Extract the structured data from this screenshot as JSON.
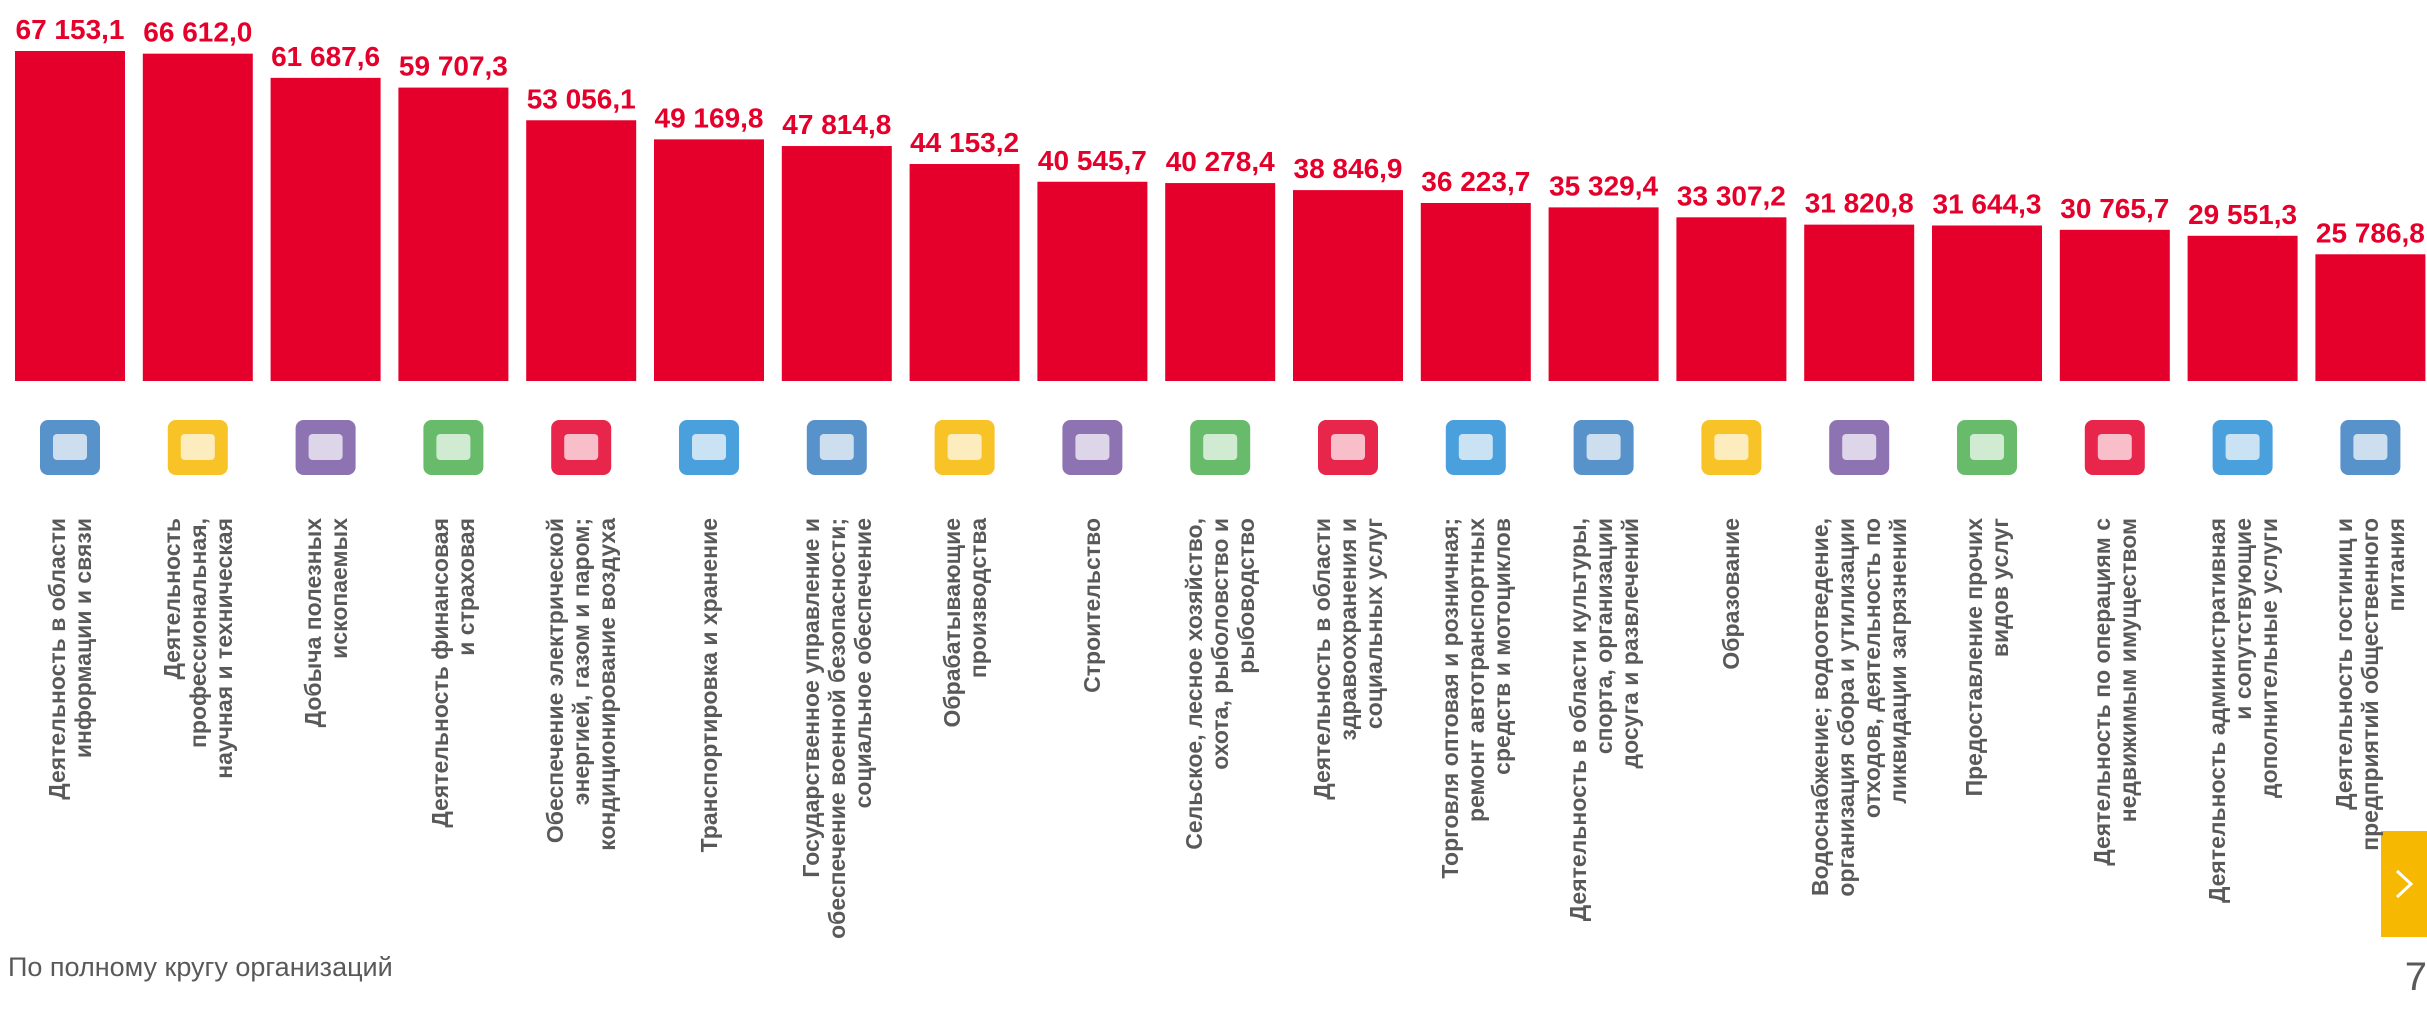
{
  "chart_data": {
    "type": "bar",
    "color": "#e4002b",
    "categories": [
      "Деятельность в области\nинформации и связи",
      "Деятельность\nпрофессиональная,\nнаучная и техническая",
      "Добыча полезных\nископаемых",
      "Деятельность финансовая\nи страховая",
      "Обеспечение электрической\nэнергией, газом и паром;\nкондиционирование воздуха",
      "Транспортировка и хранение",
      "Государственное управление и\nобеспечение военной безопасности;\nсоциальное обеспечение",
      "Обрабатывающие\nпроизводства",
      "Строительство",
      "Сельское, лесное хозяйство,\nохота, рыболовство и\nрыбоводство",
      "Деятельность в области\nздравоохранения и\nсоциальных услуг",
      "Торговля оптовая и розничная;\nремонт автотранспортных\nсредств и мотоциклов",
      "Деятельность в области культуры,\nспорта, организации\nдосуга и развлечений",
      "Образование",
      "Водоснабжение; водоотведение,\nорганизация сбора и утилизации\nотходов, деятельность по\nликвидации загрязнений",
      "Предоставление прочих\nвидов услуг",
      "Деятельность по операциям с\nнедвижимым имуществом",
      "Деятельность административная\nи сопутствующие\nдополнительные услуги",
      "Деятельность гостиниц и\nпредприятий общественного\nпитания"
    ],
    "values": [
      67153.1,
      66612.0,
      61687.6,
      59707.3,
      53056.1,
      49169.8,
      47814.8,
      44153.2,
      40545.7,
      40278.4,
      38846.9,
      36223.7,
      35329.4,
      33307.2,
      31820.8,
      31644.3,
      30765.7,
      29551.3,
      25786.8
    ],
    "value_labels": [
      "67 153,1",
      "66 612,0",
      "61 687,6",
      "59 707,3",
      "53 056,1",
      "49 169,8",
      "47 814,8",
      "44 153,2",
      "40 545,7",
      "40 278,4",
      "38 846,9",
      "36 223,7",
      "35 329,4",
      "33 307,2",
      "31 820,8",
      "31 644,3",
      "30 765,7",
      "29 551,3",
      "25 786,8"
    ],
    "footnote": "По полному кругу организаций",
    "page_number": "7"
  }
}
